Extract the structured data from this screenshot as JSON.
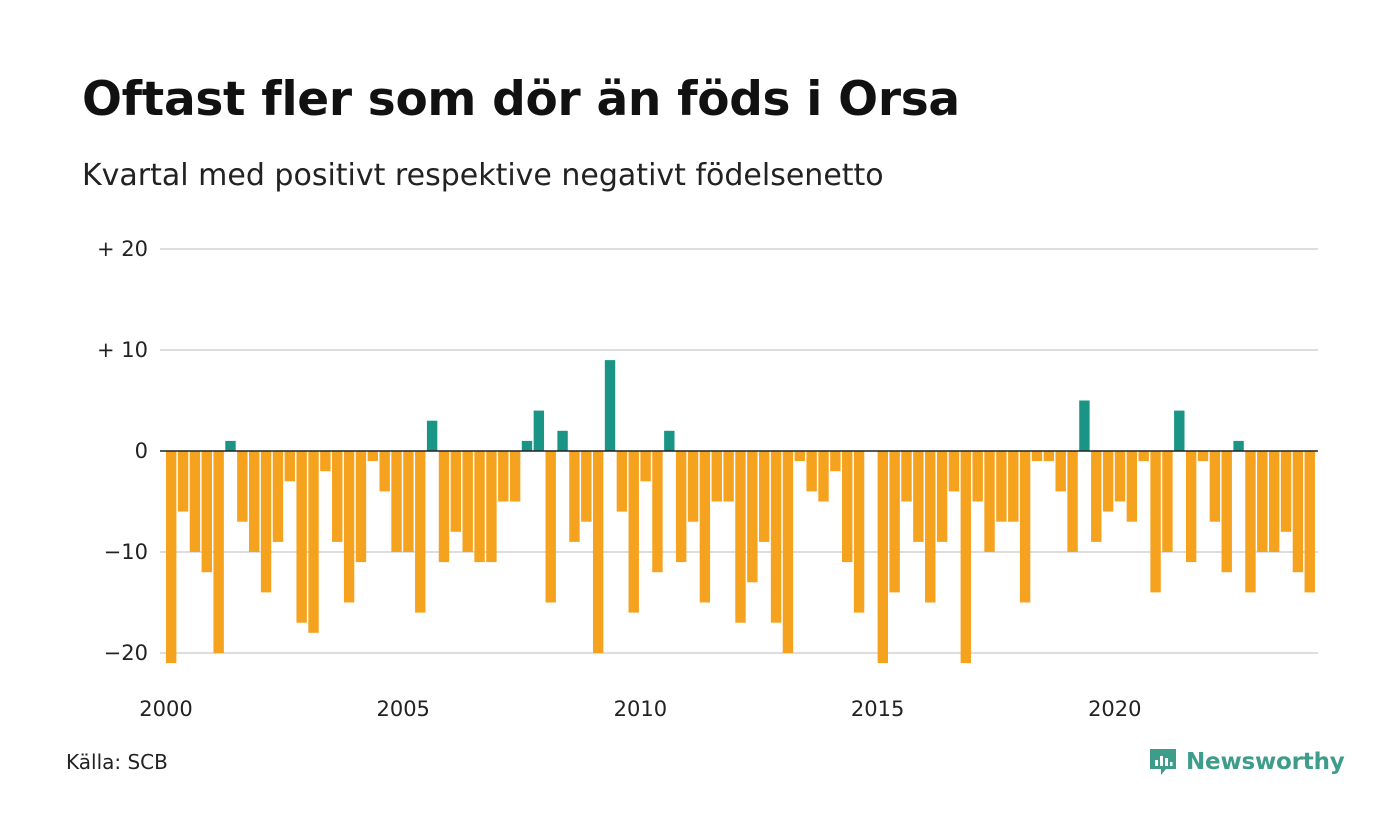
{
  "title": "Oftast fler som dör än föds i Orsa",
  "subtitle": "Kvartal med positivt respektive negativt födelsenetto",
  "source": "Källa: SCB",
  "brand": "Newsworthy",
  "brand_icon": "newsworthy-logo-icon",
  "colors": {
    "positive": "#1a9585",
    "negative": "#f5a21e",
    "grid": "#dddddd",
    "zero_line": "#222222",
    "brand": "#3d9c8a"
  },
  "chart_data": {
    "type": "bar",
    "title": "Oftast fler som dör än föds i Orsa",
    "subtitle": "Kvartal med positivt respektive negativt födelsenetto",
    "xlabel": "",
    "ylabel": "",
    "ylim": [
      -22,
      21
    ],
    "grid": true,
    "y_ticks": [
      {
        "value": 20,
        "label": "+ 20"
      },
      {
        "value": 10,
        "label": "+ 10"
      },
      {
        "value": 0,
        "label": "0"
      },
      {
        "value": -10,
        "label": "−10"
      },
      {
        "value": -20,
        "label": "−20"
      }
    ],
    "x_ticks": [
      {
        "value": 2000,
        "label": "2000"
      },
      {
        "value": 2005,
        "label": "2005"
      },
      {
        "value": 2010,
        "label": "2010"
      },
      {
        "value": 2015,
        "label": "2015"
      },
      {
        "value": 2020,
        "label": "2020"
      }
    ],
    "start_year": 2000,
    "start_quarter": 1,
    "values": [
      -21,
      -6,
      -10,
      -12,
      -20,
      1,
      -7,
      -10,
      -14,
      -9,
      -3,
      -17,
      -18,
      -2,
      -9,
      -15,
      -11,
      -1,
      -4,
      -10,
      -10,
      -16,
      3,
      -11,
      -8,
      -10,
      -11,
      -11,
      -5,
      -5,
      1,
      4,
      -15,
      2,
      -9,
      -7,
      -20,
      9,
      -6,
      -16,
      -3,
      -12,
      2,
      -11,
      -7,
      -15,
      -5,
      -5,
      -17,
      -13,
      -9,
      -17,
      -20,
      -1,
      -4,
      -5,
      -2,
      -11,
      -16,
      0,
      -21,
      -14,
      -5,
      -9,
      -15,
      -9,
      -4,
      -21,
      -5,
      -10,
      -7,
      -7,
      -15,
      -1,
      -1,
      -4,
      -10,
      5,
      -9,
      -6,
      -5,
      -7,
      -1,
      -14,
      -10,
      4,
      -11,
      -1,
      -7,
      -12,
      1,
      -14,
      -10,
      -10,
      -8,
      -12,
      -14
    ]
  }
}
